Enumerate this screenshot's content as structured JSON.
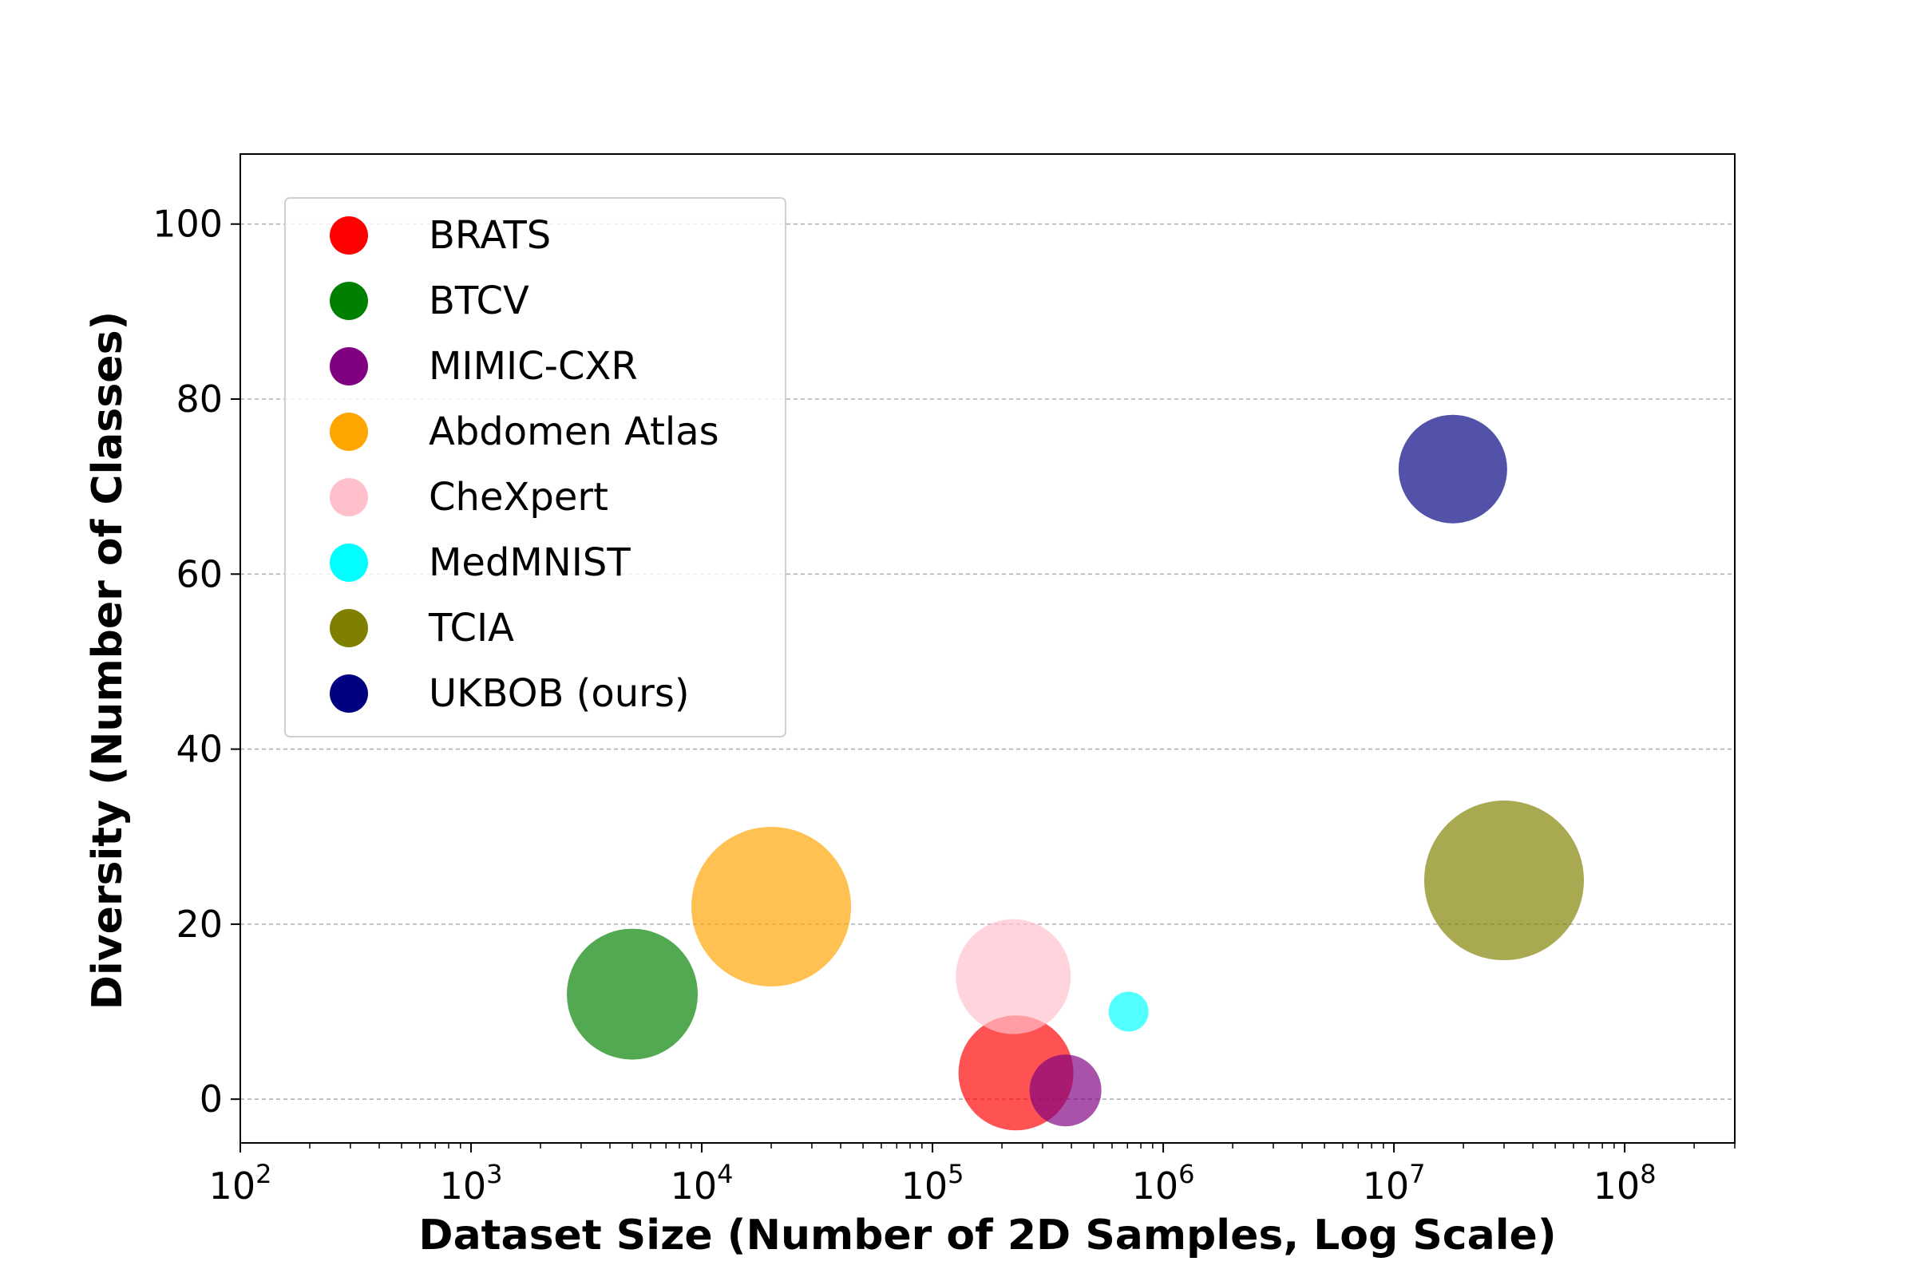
{
  "chart_data": {
    "type": "scatter",
    "xlabel": "Dataset Size (Number of 2D Samples, Log Scale)",
    "ylabel": "Diversity (Number of Classes)",
    "x_scale": "log",
    "xlim": [
      100,
      300000000
    ],
    "ylim": [
      -5,
      108
    ],
    "x_ticks": [
      {
        "value": 100,
        "base": "10",
        "exp": "2"
      },
      {
        "value": 1000,
        "base": "10",
        "exp": "3"
      },
      {
        "value": 10000,
        "base": "10",
        "exp": "4"
      },
      {
        "value": 100000,
        "base": "10",
        "exp": "5"
      },
      {
        "value": 1000000,
        "base": "10",
        "exp": "6"
      },
      {
        "value": 10000000,
        "base": "10",
        "exp": "7"
      },
      {
        "value": 100000000,
        "base": "10",
        "exp": "8"
      }
    ],
    "y_ticks": [
      {
        "value": 0,
        "label": "0"
      },
      {
        "value": 20,
        "label": "20"
      },
      {
        "value": 40,
        "label": "40"
      },
      {
        "value": 60,
        "label": "60"
      },
      {
        "value": 80,
        "label": "80"
      },
      {
        "value": 100,
        "label": "100"
      }
    ],
    "grid": "horizontal dashed",
    "legend_position": "upper-left",
    "series": [
      {
        "name": "BRATS",
        "color": "#ff0000",
        "x": 230000,
        "y": 3,
        "relative_size": 0.72
      },
      {
        "name": "BTCV",
        "color": "#008000",
        "x": 5000,
        "y": 12,
        "relative_size": 0.82
      },
      {
        "name": "MIMIC-CXR",
        "color": "#800080",
        "x": 377000,
        "y": 1,
        "relative_size": 0.45
      },
      {
        "name": "Abdomen Atlas",
        "color": "#ffa500",
        "x": 20000,
        "y": 22,
        "relative_size": 1.0
      },
      {
        "name": "CheXpert",
        "color": "#ffc0cb",
        "x": 224000,
        "y": 14,
        "relative_size": 0.72
      },
      {
        "name": "MedMNIST",
        "color": "#00ffff",
        "x": 708000,
        "y": 10,
        "relative_size": 0.25
      },
      {
        "name": "TCIA",
        "color": "#808000",
        "x": 30000000,
        "y": 25,
        "relative_size": 1.0
      },
      {
        "name": "UKBOB (ours)",
        "color": "#000080",
        "x": 18000000,
        "y": 72,
        "relative_size": 0.68
      }
    ]
  }
}
